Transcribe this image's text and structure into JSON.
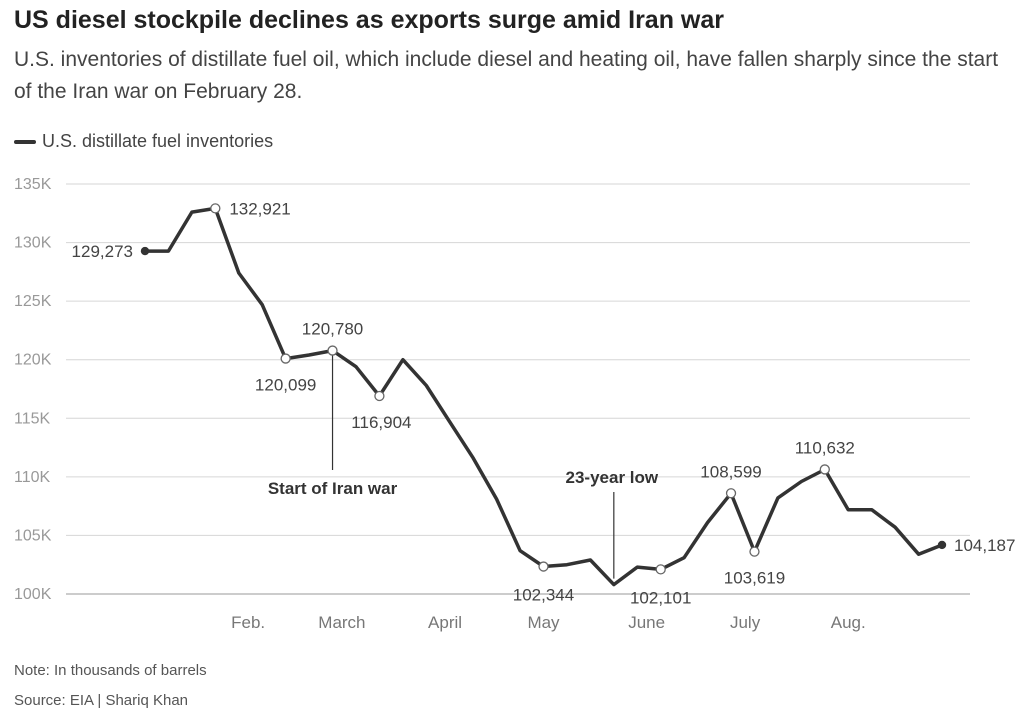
{
  "title": "US diesel stockpile declines as exports surge amid Iran war",
  "subtitle": "U.S. inventories of distillate fuel oil, which include diesel and heating oil, have fallen sharply since the start of the Iran war on February 28.",
  "note": "Note: In thousands of barrels",
  "source": "Source: EIA | Shariq Khan",
  "chart_data": {
    "type": "line",
    "series": [
      {
        "name": "U.S. distillate fuel inventories",
        "color": "#333333",
        "values": [
          129273,
          129273,
          132600,
          132921,
          127400,
          124700,
          120099,
          120400,
          120780,
          119400,
          116904,
          120000,
          117800,
          114700,
          111600,
          108100,
          103700,
          102344,
          102500,
          102900,
          100800,
          102300,
          102101,
          103100,
          106100,
          108599,
          103619,
          108200,
          109600,
          110632,
          107200,
          107200,
          105700,
          103400,
          104187
        ]
      }
    ],
    "x_labels": [
      "Feb.",
      "March",
      "April",
      "May",
      "June",
      "July",
      "Aug."
    ],
    "x_label_positions": [
      4.4,
      8.4,
      12.8,
      17.0,
      21.4,
      25.6,
      30.0
    ],
    "y_ticks": [
      "100K",
      "105K",
      "110K",
      "115K",
      "120K",
      "125K",
      "130K",
      "135K"
    ],
    "y_tick_values": [
      100000,
      105000,
      110000,
      115000,
      120000,
      125000,
      130000,
      135000
    ],
    "ylim": [
      100000,
      135000
    ],
    "grid": true,
    "legend_position": "top-left",
    "data_labels": [
      {
        "index": 0,
        "text": "129,273"
      },
      {
        "index": 3,
        "text": "132,921"
      },
      {
        "index": 6,
        "text": "120,099"
      },
      {
        "index": 8,
        "text": "120,780"
      },
      {
        "index": 10,
        "text": "116,904"
      },
      {
        "index": 17,
        "text": "102,344"
      },
      {
        "index": 22,
        "text": "102,101"
      },
      {
        "index": 25,
        "text": "108,599"
      },
      {
        "index": 26,
        "text": "103,619"
      },
      {
        "index": 29,
        "text": "110,632"
      },
      {
        "index": 34,
        "text": "104,187"
      }
    ],
    "annotations": [
      {
        "index": 8,
        "text": "Start of Iran war"
      },
      {
        "index": 20,
        "text": "23-year low"
      }
    ]
  }
}
